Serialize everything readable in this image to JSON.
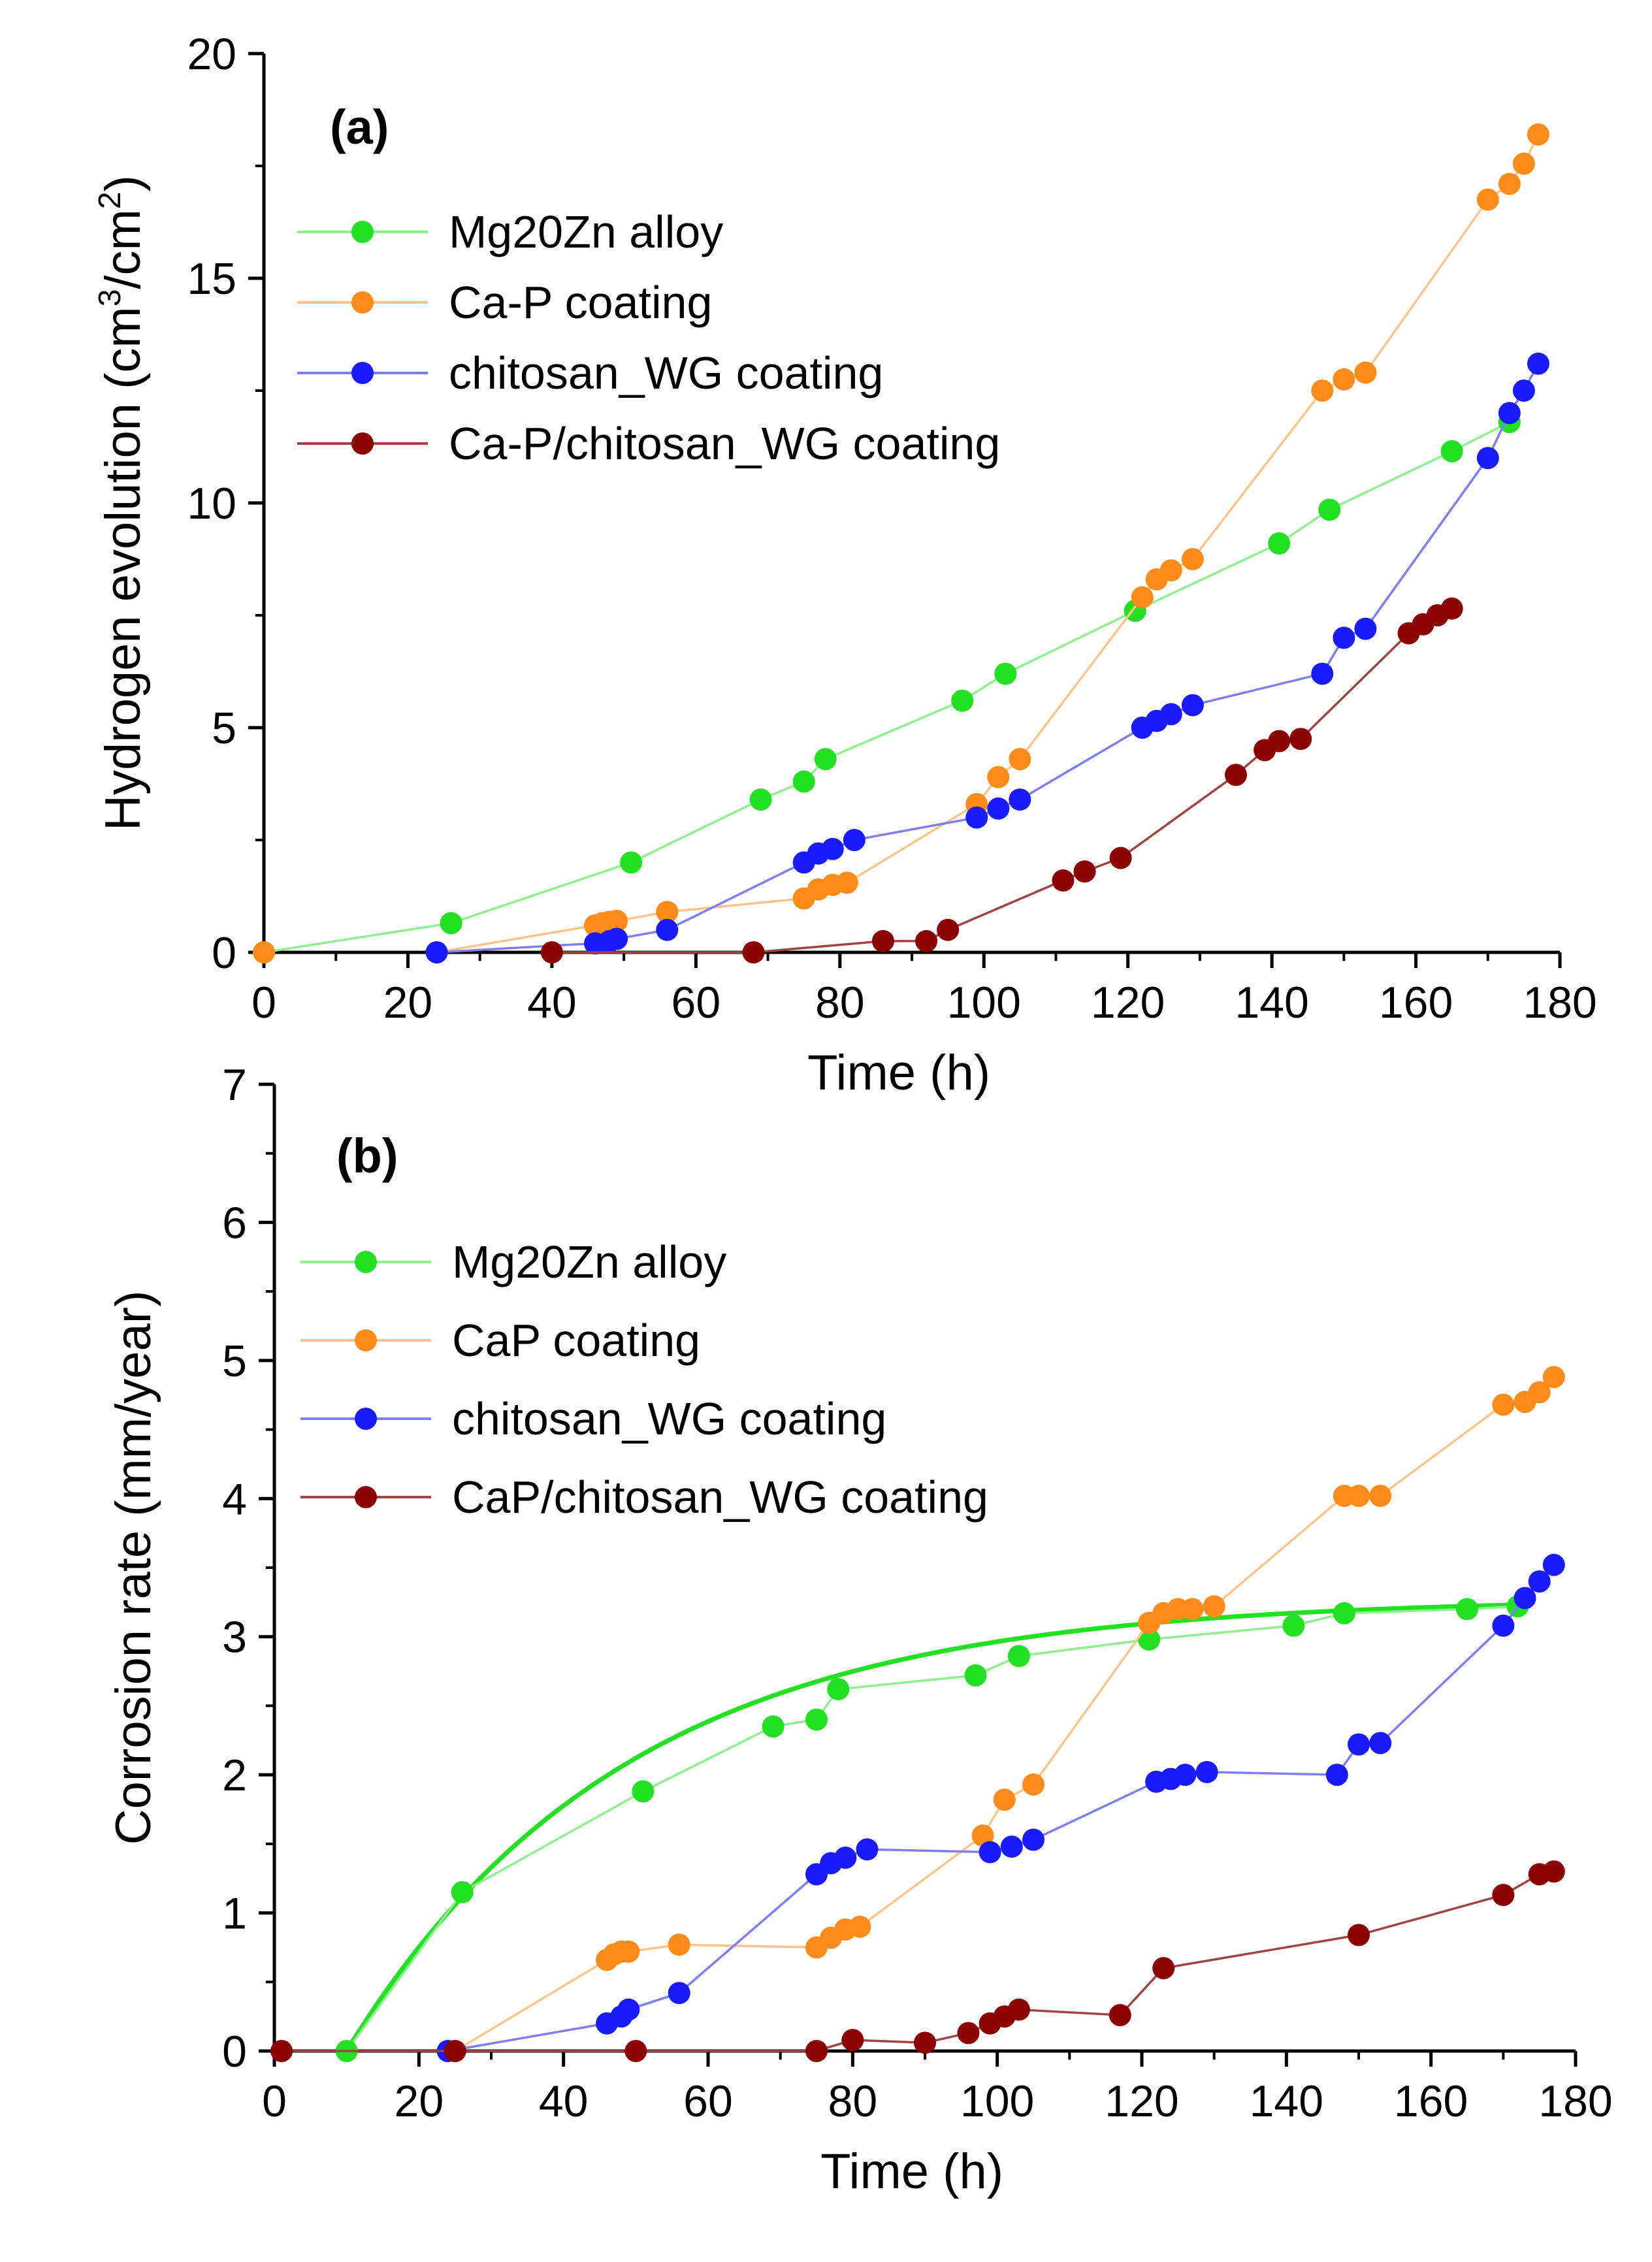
{
  "chart_data": [
    {
      "type": "line",
      "panel_label": "(a)",
      "xlabel": "Time (h)",
      "ylabel_main": "Hydrogen evolution (cm",
      "ylabel_sup1": "3",
      "ylabel_mid": "/cm",
      "ylabel_sup2": "2",
      "ylabel_end": ")",
      "xlim": [
        0,
        180
      ],
      "ylim": [
        0,
        20
      ],
      "xticks": [
        0,
        20,
        40,
        60,
        80,
        100,
        120,
        140,
        160,
        180
      ],
      "yticks": [
        0,
        5,
        10,
        15,
        20
      ],
      "xtick_labels": [
        "0",
        "20",
        "40",
        "60",
        "80",
        "100",
        "120",
        "140",
        "160",
        "180"
      ],
      "ytick_labels": [
        "0",
        "5",
        "10",
        "15",
        "20"
      ],
      "grid": false,
      "legend_position": "top-left",
      "series": [
        {
          "name": "Mg20Zn alloy",
          "color": "#22e022",
          "line_color": "#8ef08e",
          "x": [
            0,
            26,
            51,
            69,
            75,
            78,
            97,
            103,
            121,
            141,
            148,
            165,
            173
          ],
          "y": [
            0,
            0.65,
            2.0,
            3.4,
            3.8,
            4.3,
            5.6,
            6.2,
            7.6,
            9.1,
            9.85,
            11.15,
            11.8
          ]
        },
        {
          "name": "Ca-P coating",
          "color": "#ff8c1a",
          "line_color": "#ffc48a",
          "x": [
            0,
            24,
            46,
            47,
            48,
            49,
            56,
            75,
            77,
            79,
            81,
            99,
            102,
            105,
            122,
            124,
            126,
            129,
            147,
            150,
            153,
            170,
            173,
            175,
            177
          ],
          "y": [
            0,
            0,
            0.6,
            0.65,
            0.68,
            0.7,
            0.9,
            1.2,
            1.4,
            1.5,
            1.55,
            3.3,
            3.9,
            4.3,
            7.9,
            8.3,
            8.5,
            8.75,
            12.5,
            12.75,
            12.9,
            16.75,
            17.1,
            17.55,
            18.2
          ],
          "show_line_from": 1
        },
        {
          "name": "chitosan_WG coating",
          "color": "#1a1aff",
          "line_color": "#7e7ef5",
          "x": [
            24,
            46,
            48,
            49,
            56,
            75,
            77,
            79,
            82,
            99,
            102,
            105,
            122,
            124,
            126,
            129,
            147,
            150,
            153,
            170,
            173,
            175,
            177
          ],
          "y": [
            0,
            0.2,
            0.25,
            0.3,
            0.5,
            2.0,
            2.2,
            2.3,
            2.5,
            3.0,
            3.2,
            3.4,
            5.0,
            5.15,
            5.3,
            5.5,
            6.2,
            7.0,
            7.2,
            11.0,
            12.0,
            12.5,
            13.1
          ]
        },
        {
          "name": "Ca-P/chitosan_WG coating",
          "color": "#8b0000",
          "line_color": "#a04545",
          "x": [
            40,
            68,
            86,
            92,
            95,
            111,
            114,
            119,
            135,
            139,
            141,
            144,
            159,
            161,
            163,
            165
          ],
          "y": [
            0,
            0,
            0.25,
            0.25,
            0.5,
            1.6,
            1.8,
            2.1,
            3.95,
            4.5,
            4.7,
            4.75,
            7.1,
            7.3,
            7.5,
            7.65
          ]
        }
      ]
    },
    {
      "type": "line",
      "panel_label": "(b)",
      "xlabel": "Time (h)",
      "ylabel": "Corrosion rate (mm/year)",
      "xlim": [
        0,
        180
      ],
      "ylim": [
        0,
        7
      ],
      "xticks": [
        0,
        20,
        40,
        60,
        80,
        100,
        120,
        140,
        160,
        180
      ],
      "yticks": [
        0,
        1,
        2,
        3,
        4,
        5,
        6,
        7
      ],
      "xtick_labels": [
        "0",
        "20",
        "40",
        "60",
        "80",
        "100",
        "120",
        "140",
        "160",
        "180"
      ],
      "ytick_labels": [
        "0",
        "1",
        "2",
        "3",
        "4",
        "5",
        "6",
        "7"
      ],
      "grid": false,
      "legend_position": "top-left",
      "fit_curve": {
        "series": "Mg20Zn alloy",
        "model": "exponential saturation",
        "x0": 10,
        "a": 3.28,
        "k": 0.026,
        "x_end": 172,
        "color": "#22e022"
      },
      "series": [
        {
          "name": "Mg20Zn alloy",
          "color": "#22e022",
          "line_color": "#8ef08e",
          "x": [
            10,
            26,
            51,
            69,
            75,
            78,
            97,
            103,
            121,
            141,
            148,
            165,
            172
          ],
          "y": [
            0,
            1.15,
            1.88,
            2.35,
            2.4,
            2.62,
            2.72,
            2.86,
            2.98,
            3.08,
            3.17,
            3.2,
            3.22
          ]
        },
        {
          "name": "CaP coating",
          "color": "#ff8c1a",
          "line_color": "#ffc48a",
          "x": [
            25,
            46,
            47,
            48,
            49,
            56,
            75,
            77,
            79,
            81,
            98,
            101,
            105,
            121,
            123,
            125,
            127,
            130,
            148,
            150,
            153,
            170,
            173,
            175,
            177
          ],
          "y": [
            0,
            0.66,
            0.7,
            0.72,
            0.72,
            0.77,
            0.75,
            0.82,
            0.88,
            0.9,
            1.56,
            1.82,
            1.93,
            3.1,
            3.17,
            3.2,
            3.2,
            3.22,
            4.02,
            4.02,
            4.02,
            4.68,
            4.7,
            4.77,
            4.88
          ]
        },
        {
          "name": "chitosan_WG coating",
          "color": "#1a1aff",
          "line_color": "#7e7ef5",
          "x": [
            24,
            46,
            48,
            49,
            56,
            75,
            77,
            79,
            82,
            99,
            102,
            105,
            122,
            124,
            126,
            129,
            147,
            150,
            153,
            170,
            173,
            175,
            177
          ],
          "y": [
            0,
            0.2,
            0.25,
            0.3,
            0.42,
            1.28,
            1.36,
            1.4,
            1.46,
            1.44,
            1.48,
            1.53,
            1.95,
            1.97,
            2.0,
            2.02,
            2.0,
            2.22,
            2.23,
            3.08,
            3.28,
            3.4,
            3.52
          ]
        },
        {
          "name": "CaP/chitosan_WG coating",
          "color": "#8b0000",
          "line_color": "#a04545",
          "x": [
            1,
            25,
            50,
            75,
            80,
            90,
            96,
            99,
            101,
            103,
            117,
            123,
            150,
            170,
            175,
            177
          ],
          "y": [
            0,
            0,
            0,
            0,
            0.08,
            0.06,
            0.13,
            0.2,
            0.25,
            0.3,
            0.26,
            0.6,
            0.84,
            1.13,
            1.28,
            1.3
          ]
        }
      ]
    }
  ]
}
